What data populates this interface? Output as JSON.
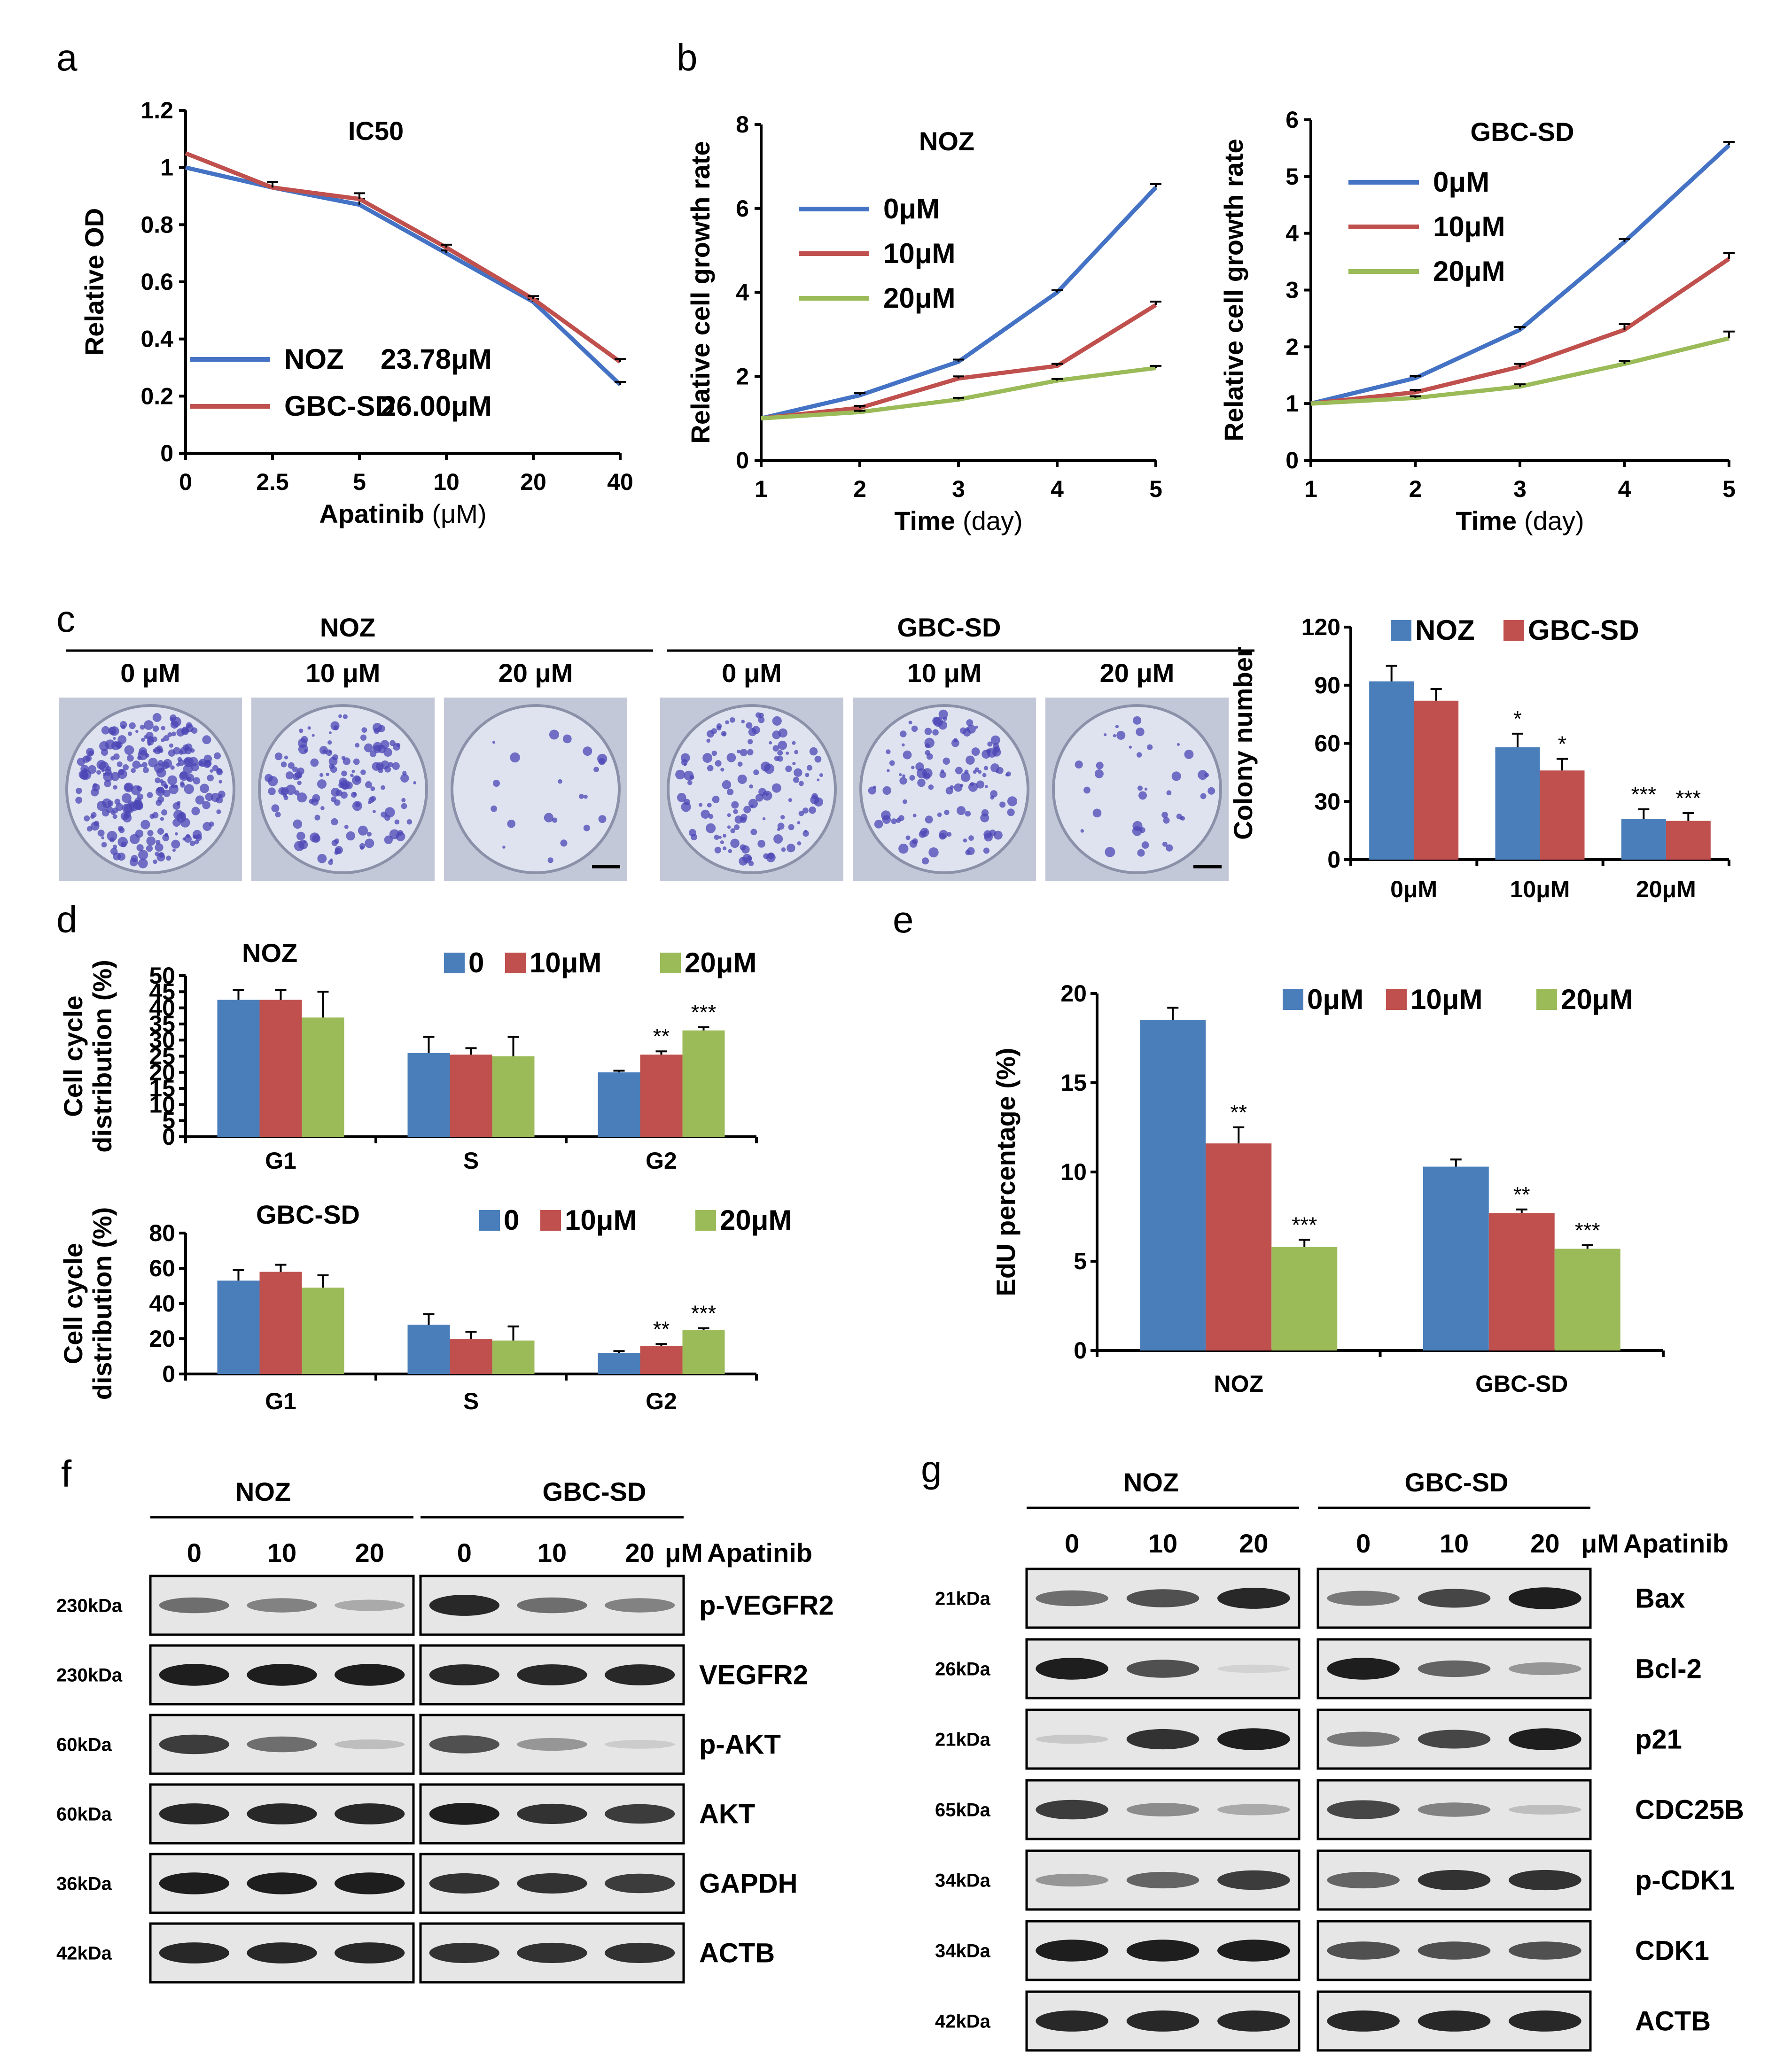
{
  "colors": {
    "blue": "#4472c4",
    "red": "#c0504d",
    "green": "#9bbb59",
    "bar_blue": "#4a7ebb",
    "bar_red": "#c0504d",
    "bar_green": "#9bbb59"
  },
  "panels": {
    "a": "a",
    "b": "b",
    "c": "c",
    "d": "d",
    "e": "e",
    "f": "f",
    "g": "g"
  },
  "chart_data": [
    {
      "id": "a",
      "type": "line",
      "title": "IC50",
      "xlabel_bold": "Apatinib",
      "xlabel_unit": "(μM)",
      "ylabel": "Relative OD",
      "categories": [
        "0",
        "2.5",
        "5",
        "10",
        "20",
        "40"
      ],
      "ylim": [
        0,
        1.2
      ],
      "yticks": [
        "0",
        "0.2",
        "0.4",
        "0.6",
        "0.8",
        "1",
        "1.2"
      ],
      "series": [
        {
          "name": "NOZ",
          "ic50": "23.78μM",
          "color": "#4472c4",
          "values": [
            1.0,
            0.93,
            0.87,
            0.7,
            0.53,
            0.24
          ],
          "err": [
            0.03,
            0.02,
            0.02,
            0.01,
            0.01,
            0.01
          ]
        },
        {
          "name": "GBC-SD",
          "ic50": "26.00μM",
          "color": "#c0504d",
          "values": [
            1.05,
            0.93,
            0.89,
            0.72,
            0.54,
            0.32
          ],
          "err": [
            0.06,
            0.02,
            0.02,
            0.01,
            0.01,
            0.01
          ]
        }
      ]
    },
    {
      "id": "b1",
      "type": "line",
      "title": "NOZ",
      "xlabel_bold": "Time",
      "xlabel_unit": "(day)",
      "ylabel": "Relative cell growth rate",
      "categories": [
        "1",
        "2",
        "3",
        "4",
        "5"
      ],
      "ylim": [
        0,
        8
      ],
      "yticks": [
        "0",
        "2",
        "4",
        "6",
        "8"
      ],
      "series": [
        {
          "name": "0μM",
          "color": "#4472c4",
          "values": [
            1.0,
            1.55,
            2.35,
            4.0,
            6.5
          ],
          "err": [
            0.02,
            0.05,
            0.05,
            0.05,
            0.08
          ]
        },
        {
          "name": "10μM",
          "color": "#c0504d",
          "values": [
            1.0,
            1.25,
            1.95,
            2.25,
            3.7
          ],
          "err": [
            0.02,
            0.05,
            0.05,
            0.05,
            0.08
          ]
        },
        {
          "name": "20μM",
          "color": "#9bbb59",
          "values": [
            1.0,
            1.15,
            1.45,
            1.9,
            2.2
          ],
          "err": [
            0.02,
            0.03,
            0.04,
            0.04,
            0.05
          ]
        }
      ]
    },
    {
      "id": "b2",
      "type": "line",
      "title": "GBC-SD",
      "xlabel_bold": "Time",
      "xlabel_unit": "(day)",
      "ylabel": "Relative cell growth rate",
      "categories": [
        "1",
        "2",
        "3",
        "4",
        "5"
      ],
      "ylim": [
        0,
        6
      ],
      "yticks": [
        "0",
        "1",
        "2",
        "3",
        "4",
        "5",
        "6"
      ],
      "series": [
        {
          "name": "0μM",
          "color": "#4472c4",
          "values": [
            1.0,
            1.45,
            2.3,
            3.85,
            5.55
          ],
          "err": [
            0.02,
            0.04,
            0.05,
            0.05,
            0.06
          ]
        },
        {
          "name": "10μM",
          "color": "#c0504d",
          "values": [
            1.0,
            1.2,
            1.65,
            2.3,
            3.55
          ],
          "err": [
            0.02,
            0.04,
            0.05,
            0.1,
            0.1
          ]
        },
        {
          "name": "20μM",
          "color": "#9bbb59",
          "values": [
            1.0,
            1.1,
            1.3,
            1.7,
            2.15
          ],
          "err": [
            0.02,
            0.03,
            0.04,
            0.05,
            0.12
          ]
        }
      ]
    },
    {
      "id": "c_bar",
      "type": "bar",
      "ylabel": "Colony number",
      "categories": [
        "0μM",
        "10μM",
        "20μM"
      ],
      "ylim": [
        0,
        120
      ],
      "yticks": [
        "0",
        "30",
        "60",
        "90",
        "120"
      ],
      "series": [
        {
          "name": "NOZ",
          "color": "#4a7ebb",
          "values": [
            92,
            58,
            21
          ],
          "err": [
            8,
            7,
            5
          ],
          "stars": [
            "",
            "*",
            "***"
          ]
        },
        {
          "name": "GBC-SD",
          "color": "#c0504d",
          "values": [
            82,
            46,
            20
          ],
          "err": [
            6,
            6,
            4
          ],
          "stars": [
            "",
            "*",
            "***"
          ]
        }
      ]
    },
    {
      "id": "d1",
      "type": "bar",
      "title": "NOZ",
      "ylabel": [
        "Cell cycle",
        "distribution (%)"
      ],
      "categories": [
        "G1",
        "S",
        "G2"
      ],
      "ylim": [
        0,
        50
      ],
      "yticks": [
        "0",
        "5",
        "10",
        "15",
        "20",
        "25",
        "30",
        "35",
        "40",
        "45",
        "50"
      ],
      "series": [
        {
          "name": "0",
          "color": "#4a7ebb",
          "values": [
            42.5,
            26,
            20
          ],
          "err": [
            3,
            5,
            0.5
          ],
          "stars": [
            "",
            "",
            ""
          ]
        },
        {
          "name": "10μM",
          "color": "#c0504d",
          "values": [
            42.5,
            25.5,
            25.5
          ],
          "err": [
            3,
            2,
            1
          ],
          "stars": [
            "",
            "",
            "**"
          ]
        },
        {
          "name": "20μM",
          "color": "#9bbb59",
          "values": [
            37,
            25,
            33
          ],
          "err": [
            8,
            6,
            1
          ],
          "stars": [
            "",
            "",
            "***"
          ]
        }
      ]
    },
    {
      "id": "d2",
      "type": "bar",
      "title": "GBC-SD",
      "ylabel": [
        "Cell cycle",
        "distribution (%)"
      ],
      "categories": [
        "G1",
        "S",
        "G2"
      ],
      "ylim": [
        0,
        80
      ],
      "yticks": [
        "0",
        "20",
        "40",
        "60",
        "80"
      ],
      "series": [
        {
          "name": "0",
          "color": "#4a7ebb",
          "values": [
            53,
            28,
            12
          ],
          "err": [
            6,
            6,
            1
          ],
          "stars": [
            "",
            "",
            ""
          ]
        },
        {
          "name": "10μM",
          "color": "#c0504d",
          "values": [
            58,
            20,
            16
          ],
          "err": [
            4,
            4,
            1
          ],
          "stars": [
            "",
            "",
            "**"
          ]
        },
        {
          "name": "20μM",
          "color": "#9bbb59",
          "values": [
            49,
            19,
            25
          ],
          "err": [
            7,
            8,
            1
          ],
          "stars": [
            "",
            "",
            "***"
          ]
        }
      ]
    },
    {
      "id": "e",
      "type": "bar",
      "ylabel": "EdU percentage (%)",
      "categories": [
        "NOZ",
        "GBC-SD"
      ],
      "ylim": [
        0,
        20
      ],
      "yticks": [
        "0",
        "5",
        "10",
        "15",
        "20"
      ],
      "series": [
        {
          "name": "0μM",
          "color": "#4a7ebb",
          "values": [
            18.5,
            10.3
          ],
          "err": [
            0.7,
            0.4
          ],
          "stars": [
            "",
            ""
          ]
        },
        {
          "name": "10μM",
          "color": "#c0504d",
          "values": [
            11.6,
            7.7
          ],
          "err": [
            0.9,
            0.2
          ],
          "stars": [
            "**",
            "**"
          ]
        },
        {
          "name": "20μM",
          "color": "#9bbb59",
          "values": [
            5.8,
            5.7
          ],
          "err": [
            0.4,
            0.2
          ],
          "stars": [
            "***",
            "***"
          ]
        }
      ]
    }
  ],
  "panel_c_images": {
    "noz": {
      "title": "NOZ",
      "conc": [
        "0 μM",
        "10 μM",
        "20 μM"
      ]
    },
    "gbc": {
      "title": "GBC-SD",
      "conc": [
        "0 μM",
        "10 μM",
        "20 μM"
      ]
    },
    "density": [
      1.0,
      0.55,
      0.08,
      0.5,
      0.45,
      0.15
    ]
  },
  "panel_f": {
    "group1": "NOZ",
    "group2": "GBC-SD",
    "concs": [
      "0",
      "10",
      "20",
      "0",
      "10",
      "20"
    ],
    "unit": "μM",
    "drug": "Apatinib",
    "rows": [
      {
        "kda": "230kDa",
        "protein": "p-VEGFR2",
        "levels": [
          0.55,
          0.45,
          0.25,
          0.9,
          0.55,
          0.45
        ]
      },
      {
        "kda": "230kDa",
        "protein": "VEGFR2",
        "levels": [
          0.95,
          0.95,
          0.95,
          0.9,
          0.9,
          0.9
        ]
      },
      {
        "kda": "60kDa",
        "protein": "p-AKT",
        "levels": [
          0.8,
          0.55,
          0.15,
          0.7,
          0.35,
          0.08
        ]
      },
      {
        "kda": "60kDa",
        "protein": "AKT",
        "levels": [
          0.9,
          0.9,
          0.9,
          0.95,
          0.85,
          0.8
        ]
      },
      {
        "kda": "36kDa",
        "protein": "GAPDH",
        "levels": [
          0.95,
          0.95,
          0.95,
          0.85,
          0.85,
          0.8
        ]
      },
      {
        "kda": "42kDa",
        "protein": "ACTB",
        "levels": [
          0.9,
          0.9,
          0.9,
          0.85,
          0.85,
          0.85
        ]
      }
    ]
  },
  "panel_g": {
    "group1": "NOZ",
    "group2": "GBC-SD",
    "concs": [
      "0",
      "10",
      "20",
      "0",
      "10",
      "20"
    ],
    "unit": "μM",
    "drug": "Apatinib",
    "rows": [
      {
        "kda": "21kDa",
        "protein": "Bax",
        "levels": [
          0.55,
          0.7,
          0.9,
          0.5,
          0.75,
          0.95
        ]
      },
      {
        "kda": "26kDa",
        "protein": "Bcl-2",
        "levels": [
          0.95,
          0.7,
          0.05,
          0.95,
          0.6,
          0.35
        ]
      },
      {
        "kda": "21kDa",
        "protein": "p21",
        "levels": [
          0.1,
          0.85,
          0.95,
          0.5,
          0.75,
          0.95
        ]
      },
      {
        "kda": "65kDa",
        "protein": "CDC25B",
        "levels": [
          0.8,
          0.4,
          0.25,
          0.75,
          0.45,
          0.15
        ]
      },
      {
        "kda": "34kDa",
        "protein": "p-CDK1",
        "levels": [
          0.35,
          0.6,
          0.8,
          0.6,
          0.85,
          0.85
        ]
      },
      {
        "kda": "34kDa",
        "protein": "CDK1",
        "levels": [
          0.95,
          0.95,
          0.95,
          0.7,
          0.7,
          0.7
        ]
      },
      {
        "kda": "42kDa",
        "protein": "ACTB",
        "levels": [
          0.9,
          0.9,
          0.9,
          0.9,
          0.9,
          0.9
        ]
      }
    ]
  }
}
